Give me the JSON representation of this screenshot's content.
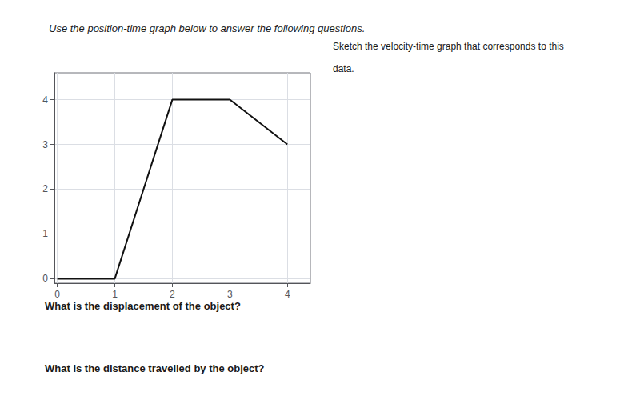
{
  "chart_data": {
    "type": "line",
    "title": "Use the position-time graph below to answer the following questions.",
    "annotations": [
      "Sketch the velocity-time graph that corresponds to this",
      "data.",
      "What is the displacement of the object?",
      "What is the distance travelled by the object?"
    ],
    "x": [
      0,
      1,
      2,
      3,
      4
    ],
    "values": [
      0,
      0,
      4,
      4,
      3
    ],
    "color": "#111111",
    "xlim": [
      -0.05,
      4.4
    ],
    "ylim": [
      -0.1,
      4.6
    ],
    "xticks": [
      0,
      1,
      2,
      3,
      4
    ],
    "yticks": [
      0,
      1,
      2,
      3,
      4
    ],
    "grid": true
  }
}
